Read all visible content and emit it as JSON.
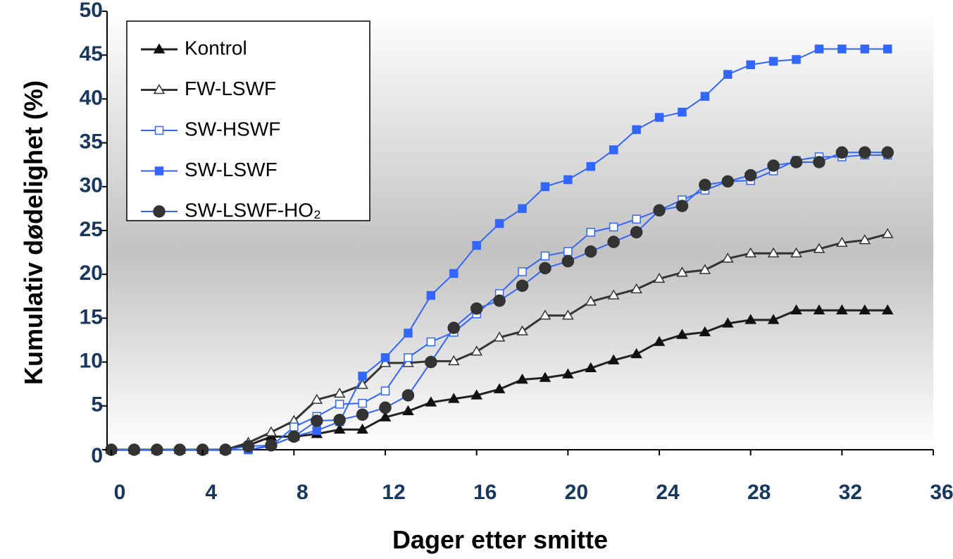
{
  "chart_data": {
    "type": "line",
    "x_label": "Dager etter smitte",
    "y_label": "Kumulativ dødelighet (%)",
    "x": [
      0,
      1,
      2,
      3,
      4,
      5,
      6,
      7,
      8,
      9,
      10,
      11,
      12,
      13,
      14,
      15,
      16,
      17,
      18,
      19,
      20,
      21,
      22,
      23,
      24,
      25,
      26,
      27,
      28,
      29,
      30,
      31,
      32,
      33,
      34
    ],
    "xlim": [
      0,
      36
    ],
    "xticks": [
      0,
      4,
      8,
      12,
      16,
      20,
      24,
      28,
      32,
      36
    ],
    "ylim": [
      0,
      50
    ],
    "yticks": [
      0,
      5,
      10,
      15,
      20,
      25,
      30,
      35,
      40,
      45,
      50
    ],
    "legend": "top-left",
    "series": [
      {
        "name": "Kontrol",
        "color": "#222222",
        "marker": "triangle",
        "marker_color": "#111111",
        "marker_filled": true,
        "values": [
          0,
          0,
          0,
          0,
          0,
          0,
          0.5,
          1.5,
          1.5,
          1.8,
          2.3,
          2.3,
          3.7,
          4.4,
          5.4,
          5.8,
          6.2,
          6.9,
          8.0,
          8.2,
          8.6,
          9.3,
          10.2,
          10.9,
          12.3,
          13.1,
          13.4,
          14.4,
          14.8,
          14.8,
          15.9,
          15.9,
          15.9,
          15.9,
          15.9
        ]
      },
      {
        "name": "FW-LSWF",
        "color": "#333333",
        "marker": "triangle",
        "marker_color": "#333333",
        "marker_filled": false,
        "values": [
          0,
          0,
          0,
          0,
          0,
          0,
          0.8,
          2.0,
          3.3,
          5.7,
          6.4,
          7.4,
          9.9,
          9.9,
          10.1,
          10.1,
          11.2,
          12.8,
          13.5,
          15.3,
          15.3,
          16.9,
          17.6,
          18.3,
          19.5,
          20.2,
          20.5,
          21.8,
          22.4,
          22.4,
          22.4,
          22.9,
          23.6,
          23.9,
          24.6
        ]
      },
      {
        "name": "SW-HSWF",
        "color": "#3366ff",
        "marker": "square",
        "marker_color": "#3366ff",
        "marker_filled": false,
        "values": [
          0,
          0,
          0,
          0,
          0,
          0,
          0,
          0.4,
          2.6,
          3.8,
          5.2,
          5.3,
          6.7,
          10.5,
          12.3,
          13.4,
          15.5,
          17.8,
          20.3,
          22.1,
          22.6,
          24.8,
          25.4,
          26.3,
          27.3,
          28.5,
          29.6,
          30.6,
          30.7,
          31.8,
          33.0,
          33.4,
          33.4,
          33.6,
          33.6
        ]
      },
      {
        "name": "SW-LSWF",
        "color": "#3366ff",
        "marker": "square",
        "marker_color": "#3366ff",
        "marker_filled": true,
        "values": [
          0,
          0,
          0,
          0,
          0,
          0,
          0,
          0.5,
          1.5,
          2.2,
          3.2,
          8.4,
          10.5,
          13.3,
          17.6,
          20.1,
          23.3,
          25.8,
          27.5,
          30.0,
          30.8,
          32.3,
          34.2,
          36.5,
          37.9,
          38.5,
          40.3,
          42.8,
          43.9,
          44.3,
          44.5,
          45.7,
          45.7,
          45.7,
          45.7
        ]
      },
      {
        "name": "SW-LSWF-HO₂",
        "color": "#3366ff",
        "marker": "circle",
        "marker_color": "#333333",
        "marker_filled": true,
        "values": [
          0,
          0,
          0,
          0,
          0,
          0,
          0.4,
          0.5,
          1.5,
          3.3,
          3.4,
          4.0,
          4.8,
          6.2,
          10.0,
          13.9,
          16.1,
          17.0,
          18.7,
          20.7,
          21.5,
          22.6,
          23.7,
          24.8,
          27.3,
          27.8,
          30.2,
          30.6,
          31.3,
          32.4,
          32.8,
          32.8,
          33.9,
          33.9,
          33.9
        ]
      }
    ]
  }
}
